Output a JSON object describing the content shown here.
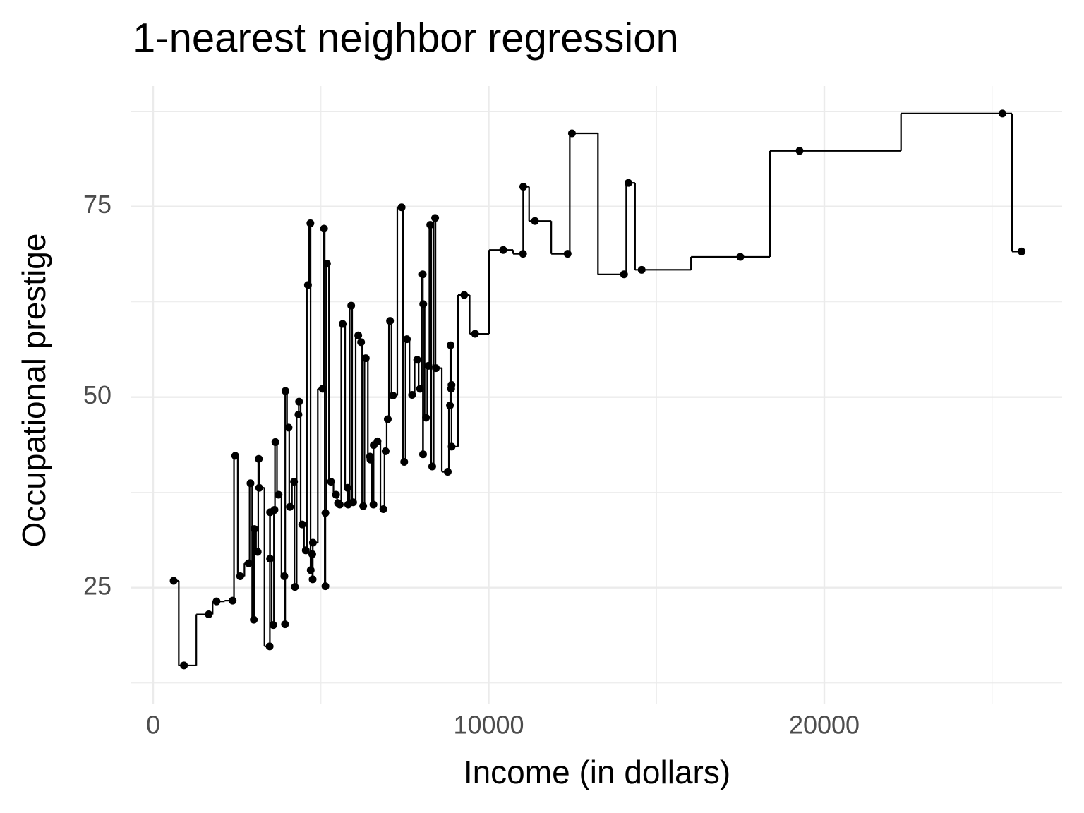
{
  "chart_data": {
    "type": "scatter",
    "title": "1-nearest neighbor regression",
    "x_label": "Income (in dollars)",
    "y_label": "Occupational prestige",
    "color": "#000000",
    "grid": true,
    "xlim": [
      -673,
      27087
    ],
    "ylim": [
      9.7,
      90.8
    ],
    "xticks": [
      0,
      10000,
      20000
    ],
    "yticks": [
      25,
      50,
      75
    ],
    "xminor": [
      5000,
      15000,
      25000
    ],
    "yminor": [
      12.5,
      37.5,
      62.5,
      87.5
    ],
    "x": [
      12351,
      25879,
      9271,
      8865,
      8403,
      11030,
      8258,
      14163,
      11377,
      11023,
      5902,
      7059,
      8425,
      8049,
      7405,
      6336,
      19263,
      6112,
      9593,
      4686,
      12480,
      5648,
      8034,
      25308,
      14558,
      17498,
      4614,
      3485,
      5092,
      10432,
      5180,
      6197,
      7562,
      8206,
      4036,
      3148,
      4348,
      2448,
      4330,
      4761,
      3016,
      2901,
      5511,
      3739,
      3161,
      4741,
      5052,
      6259,
      4075,
      7482,
      8780,
      2594,
      918,
      2370,
      8131,
      6992,
      7956,
      8895,
      8891,
      3116,
      3930,
      7869,
      611,
      3000,
      3472,
      3582,
      3643,
      1656,
      6860,
      4199,
      5134,
      5134,
      1890,
      4443,
      3485,
      8043,
      6686,
      6565,
      6477,
      5811,
      6573,
      3942,
      5449,
      2847,
      5795,
      7716,
      4696,
      8316,
      7147,
      8880,
      5299,
      5959,
      4549,
      6928,
      3910,
      14032,
      8845,
      5562,
      4224,
      4753,
      6462,
      3617
    ],
    "values": [
      68.8,
      69.1,
      63.4,
      56.8,
      73.5,
      77.6,
      72.6,
      78.1,
      73.1,
      68.8,
      62.0,
      60.0,
      53.8,
      62.2,
      74.9,
      55.1,
      82.3,
      58.1,
      58.3,
      72.8,
      84.6,
      59.6,
      66.1,
      87.2,
      66.7,
      68.4,
      64.7,
      34.9,
      72.1,
      69.3,
      67.5,
      57.2,
      57.6,
      54.1,
      46.0,
      41.9,
      49.4,
      42.3,
      47.7,
      30.9,
      32.7,
      38.7,
      36.1,
      37.2,
      38.1,
      29.4,
      51.1,
      35.7,
      35.6,
      41.5,
      40.2,
      26.5,
      14.8,
      23.3,
      47.3,
      47.1,
      51.1,
      43.5,
      51.6,
      29.7,
      20.2,
      54.9,
      25.9,
      20.8,
      17.3,
      20.1,
      44.1,
      21.5,
      35.3,
      38.9,
      25.2,
      34.8,
      23.2,
      33.3,
      28.8,
      42.5,
      44.2,
      35.9,
      41.8,
      35.9,
      43.7,
      50.8,
      37.2,
      28.2,
      38.1,
      50.3,
      27.3,
      40.9,
      50.2,
      51.1,
      38.9,
      36.2,
      29.9,
      42.9,
      26.5,
      66.1,
      48.9,
      35.9,
      25.1,
      26.1,
      42.2,
      35.2
    ]
  }
}
